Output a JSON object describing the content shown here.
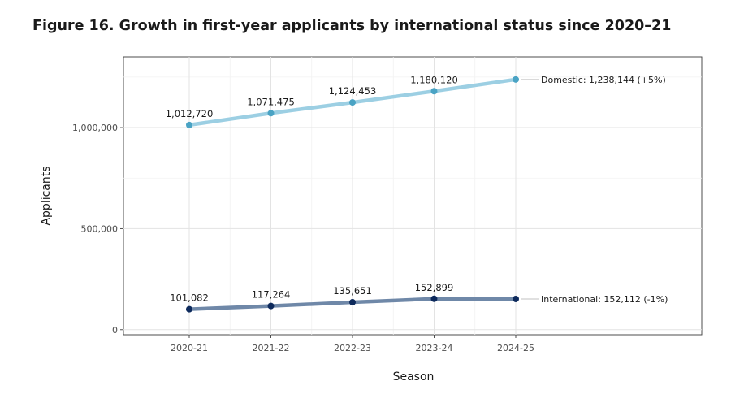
{
  "figure": {
    "title": "Figure 16. Growth in first-year applicants by international status since 2020–21"
  },
  "chart_data": {
    "type": "line",
    "title": "Figure 16. Growth in first-year applicants by international status since 2020–21",
    "xlabel": "Season",
    "ylabel": "Applicants",
    "categories": [
      "2020-21",
      "2021-22",
      "2022-23",
      "2023-24",
      "2024-25"
    ],
    "y_ticks": [
      0,
      500000,
      1000000
    ],
    "y_tick_labels": [
      "0",
      "500,000",
      "1,000,000"
    ],
    "ylim": [
      -25000,
      1350000
    ],
    "grid": true,
    "legend": "none (direct end labels)",
    "series": [
      {
        "name": "Domestic",
        "values": [
          1012720,
          1071475,
          1124453,
          1180120,
          1238144
        ],
        "labels": [
          "1,012,720",
          "1,071,475",
          "1,124,453",
          "1,180,120",
          ""
        ],
        "end_label": "Domestic: 1,238,144 (+5%)",
        "line_color": "#9ccfe3",
        "point_color": "#4aa3c4"
      },
      {
        "name": "International",
        "values": [
          101082,
          117264,
          135651,
          152899,
          152112
        ],
        "labels": [
          "101,082",
          "117,264",
          "135,651",
          "152,899",
          ""
        ],
        "end_label": "International: 152,112 (-1%)",
        "line_color": "#6f88a8",
        "point_color": "#0d2a5c"
      }
    ]
  }
}
